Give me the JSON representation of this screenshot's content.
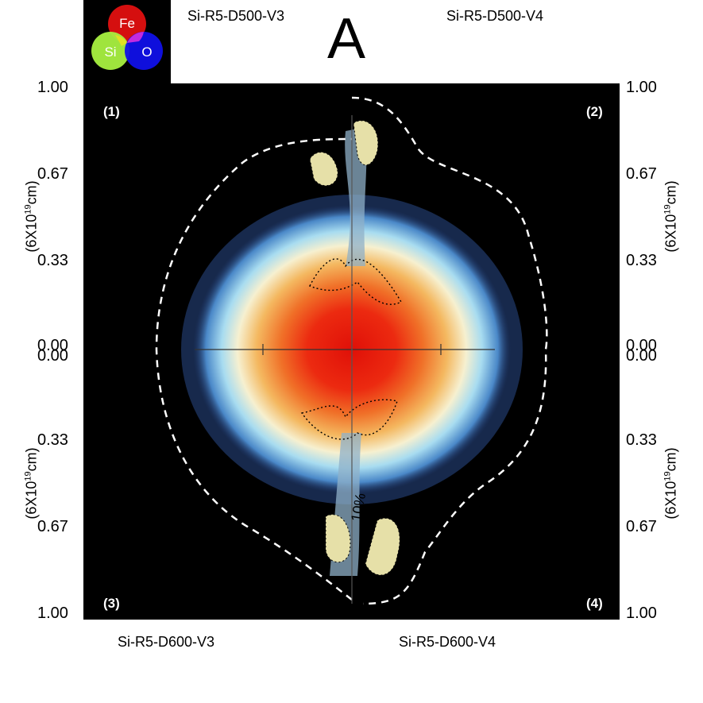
{
  "figure_letter": "A",
  "legend": {
    "fe": "Fe",
    "si": "Si",
    "o": "O",
    "fe_color": "#e01010",
    "si_color": "#a8f040",
    "o_color": "#1010e8",
    "overlap_color": "#e030e0"
  },
  "panels": {
    "top_left": "Si-R5-D500-V3",
    "top_right": "Si-R5-D500-V4",
    "bottom_left": "Si-R5-D600-V3",
    "bottom_right": "Si-R5-D600-V4"
  },
  "quadrants": {
    "q1": "(1)",
    "q2": "(2)",
    "q3": "(3)",
    "q4": "(4)"
  },
  "ticks": {
    "top": [
      "1.00",
      "0.67",
      "0.33",
      "0.00"
    ],
    "bottom": [
      "0.00",
      "0.33",
      "0.67",
      "1.00"
    ]
  },
  "axis_unit": {
    "prefix": "(6X10",
    "exp": "19",
    "suffix": "cm)"
  },
  "contour_label": "10%"
}
